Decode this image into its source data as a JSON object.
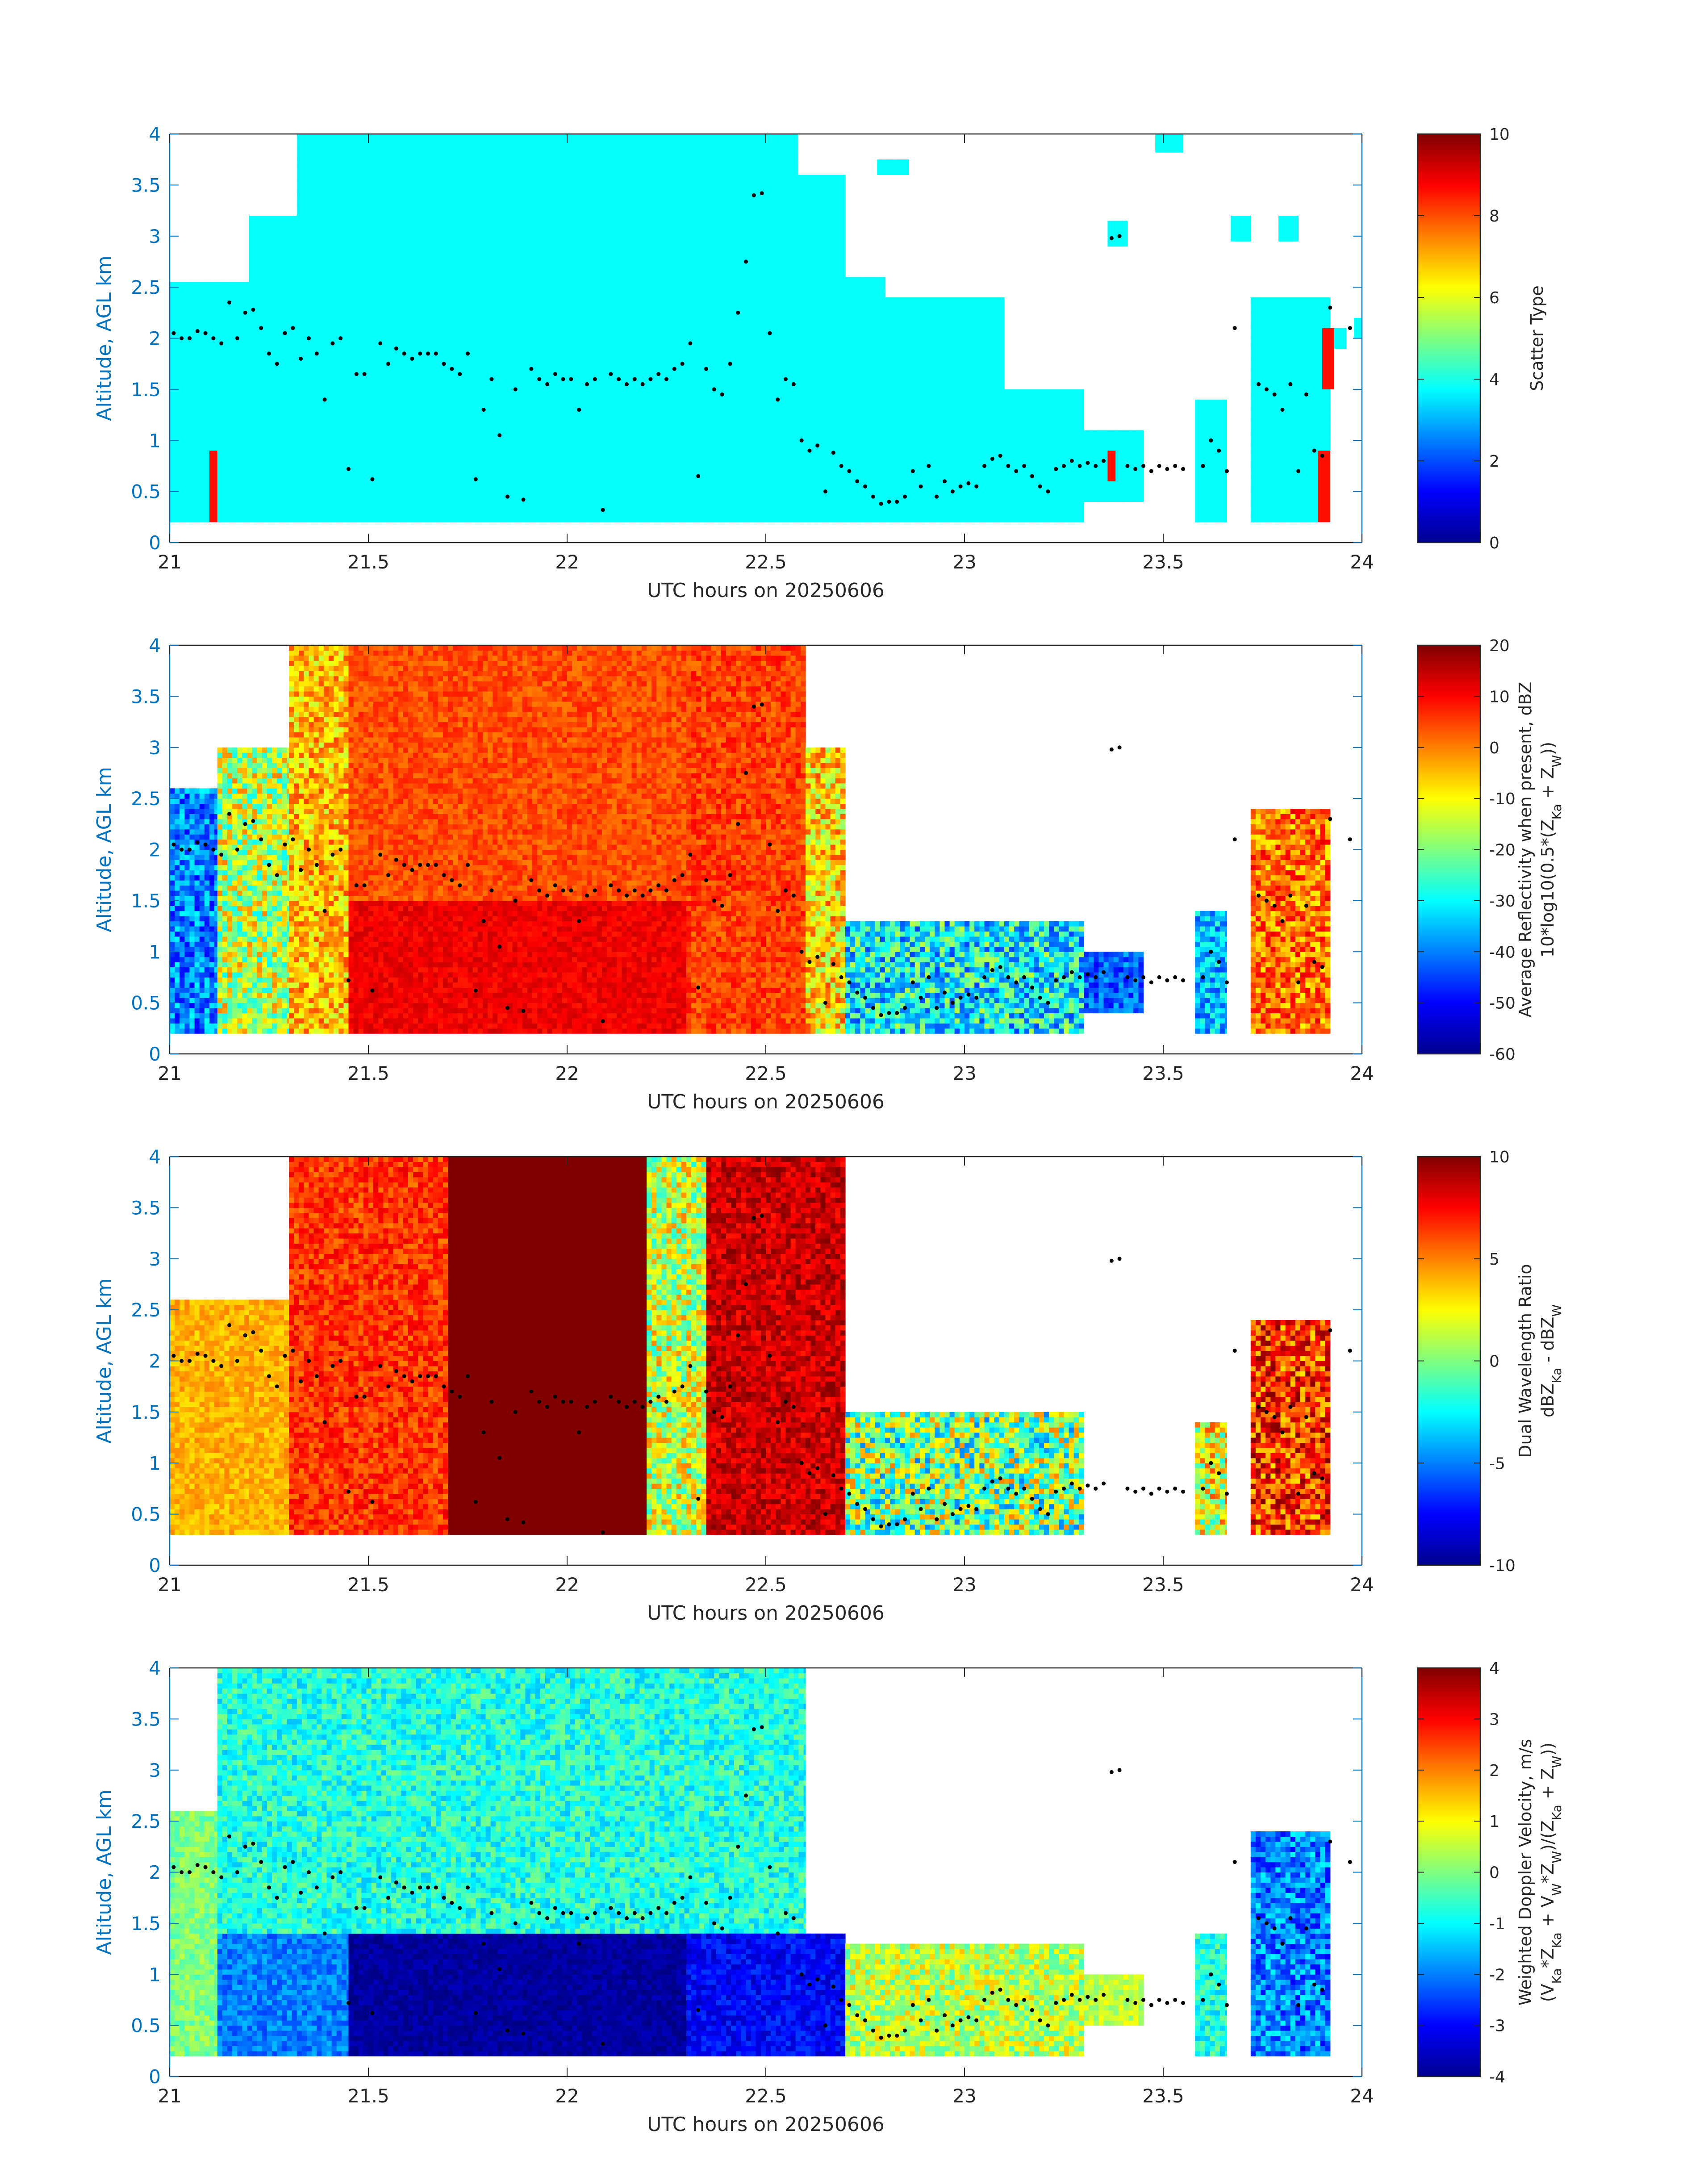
{
  "chart_data": [
    {
      "type": "heatmap",
      "xlabel": "UTC hours on 20250606",
      "ylabel": "Altitude, AGL km",
      "xlim": [
        21,
        24
      ],
      "ylim": [
        0,
        4
      ],
      "xticks": [
        "21",
        "21.5",
        "22",
        "22.5",
        "23",
        "23.5",
        "24"
      ],
      "yticks": [
        "0",
        "0.5",
        "1",
        "1.5",
        "2",
        "2.5",
        "3",
        "3.5",
        "4"
      ],
      "colorbar": {
        "label_lines": [
          "Scatter Type"
        ],
        "range": [
          0,
          10
        ],
        "ticks": [
          "0",
          "2",
          "4",
          "6",
          "8",
          "10"
        ],
        "colormap": "jet"
      },
      "dominant_value": 3.8,
      "regions": [
        {
          "t": [
            21.0,
            21.2
          ],
          "z": [
            0.2,
            2.55
          ]
        },
        {
          "t": [
            21.2,
            21.32
          ],
          "z": [
            0.2,
            3.2
          ]
        },
        {
          "t": [
            21.32,
            22.58
          ],
          "z": [
            0.2,
            4.0
          ]
        },
        {
          "t": [
            22.58,
            22.7
          ],
          "z": [
            0.2,
            3.6
          ]
        },
        {
          "t": [
            22.7,
            22.8
          ],
          "z": [
            0.2,
            2.6
          ]
        },
        {
          "t": [
            22.8,
            23.1
          ],
          "z": [
            0.2,
            2.4
          ]
        },
        {
          "t": [
            23.1,
            23.3
          ],
          "z": [
            0.2,
            1.5
          ]
        },
        {
          "t": [
            23.3,
            23.45
          ],
          "z": [
            0.4,
            1.1
          ]
        },
        {
          "t": [
            23.58,
            23.66
          ],
          "z": [
            0.2,
            1.4
          ]
        },
        {
          "t": [
            23.72,
            23.92
          ],
          "z": [
            0.2,
            2.4
          ]
        },
        {
          "t": [
            23.36,
            23.41
          ],
          "z": [
            2.9,
            3.15
          ]
        },
        {
          "t": [
            23.48,
            23.55
          ],
          "z": [
            3.82,
            4.0
          ]
        },
        {
          "t": [
            22.78,
            22.86
          ],
          "z": [
            3.6,
            3.75
          ]
        },
        {
          "t": [
            23.67,
            23.72
          ],
          "z": [
            2.95,
            3.2
          ]
        },
        {
          "t": [
            23.79,
            23.84
          ],
          "z": [
            2.95,
            3.2
          ]
        },
        {
          "t": [
            23.92,
            23.96
          ],
          "z": [
            1.9,
            2.1
          ]
        },
        {
          "t": [
            23.98,
            24.0
          ],
          "z": [
            2.0,
            2.2
          ]
        }
      ],
      "features": [
        {
          "t": [
            21.1,
            21.12
          ],
          "z": [
            0.2,
            0.9
          ],
          "value": 8.6
        },
        {
          "t": [
            23.36,
            23.38
          ],
          "z": [
            0.6,
            0.9
          ],
          "value": 8.6
        },
        {
          "t": [
            23.89,
            23.92
          ],
          "z": [
            0.2,
            0.9
          ],
          "value": 8.6
        },
        {
          "t": [
            23.9,
            23.93
          ],
          "z": [
            1.5,
            2.1
          ],
          "value": 8.6
        }
      ]
    },
    {
      "type": "heatmap",
      "xlabel": "UTC hours on 20250606",
      "ylabel": "Altitude, AGL km",
      "xlim": [
        21,
        24
      ],
      "ylim": [
        0,
        4
      ],
      "xticks": [
        "21",
        "21.5",
        "22",
        "22.5",
        "23",
        "23.5",
        "24"
      ],
      "yticks": [
        "0",
        "0.5",
        "1",
        "1.5",
        "2",
        "2.5",
        "3",
        "3.5",
        "4"
      ],
      "colorbar": {
        "label_lines": [
          "Average Reflectivity when present, dBZ",
          "10*log10(0.5*(Z",
          "Ka",
          " + Z",
          "W",
          "))"
        ],
        "range": [
          -60,
          20
        ],
        "ticks": [
          "-60",
          "-50",
          "-40",
          "-30",
          "-20",
          "-10",
          "0",
          "10",
          "20"
        ],
        "colormap": "jet"
      },
      "regions": [
        {
          "t": [
            21.0,
            21.12
          ],
          "z": [
            0.2,
            2.6
          ],
          "v": [
            -50,
            -30
          ]
        },
        {
          "t": [
            21.12,
            21.3
          ],
          "z": [
            0.2,
            3.0
          ],
          "v": [
            -30,
            0
          ]
        },
        {
          "t": [
            21.3,
            21.45
          ],
          "z": [
            0.2,
            4.0
          ],
          "v": [
            -15,
            5
          ]
        },
        {
          "t": [
            21.45,
            22.3
          ],
          "z": [
            0.2,
            1.5
          ],
          "v": [
            8,
            14
          ]
        },
        {
          "t": [
            21.45,
            22.3
          ],
          "z": [
            1.5,
            4.0
          ],
          "v": [
            0,
            8
          ]
        },
        {
          "t": [
            22.3,
            22.6
          ],
          "z": [
            0.2,
            4.0
          ],
          "v": [
            0,
            10
          ]
        },
        {
          "t": [
            22.6,
            22.7
          ],
          "z": [
            0.2,
            3.0
          ],
          "v": [
            -20,
            5
          ]
        },
        {
          "t": [
            22.7,
            23.3
          ],
          "z": [
            0.2,
            1.3
          ],
          "v": [
            -45,
            -15
          ]
        },
        {
          "t": [
            23.3,
            23.45
          ],
          "z": [
            0.4,
            1.0
          ],
          "v": [
            -50,
            -35
          ]
        },
        {
          "t": [
            23.58,
            23.66
          ],
          "z": [
            0.2,
            1.4
          ],
          "v": [
            -45,
            -25
          ]
        },
        {
          "t": [
            23.72,
            23.92
          ],
          "z": [
            0.2,
            2.4
          ],
          "v": [
            -10,
            12
          ]
        }
      ]
    },
    {
      "type": "heatmap",
      "xlabel": "UTC hours on 20250606",
      "ylabel": "Altitude, AGL km",
      "xlim": [
        21,
        24
      ],
      "ylim": [
        0,
        4
      ],
      "xticks": [
        "21",
        "21.5",
        "22",
        "22.5",
        "23",
        "23.5",
        "24"
      ],
      "yticks": [
        "0",
        "0.5",
        "1",
        "1.5",
        "2",
        "2.5",
        "3",
        "3.5",
        "4"
      ],
      "colorbar": {
        "label_lines": [
          "Dual Wavelength Ratio",
          "dBZ",
          "Ka",
          " - dBZ",
          "W"
        ],
        "range": [
          -10,
          10
        ],
        "ticks": [
          "-10",
          "-5",
          "0",
          "5",
          "10"
        ],
        "colormap": "jet"
      },
      "regions": [
        {
          "t": [
            21.0,
            21.3
          ],
          "z": [
            0.3,
            2.6
          ],
          "v": [
            3,
            5
          ]
        },
        {
          "t": [
            21.3,
            21.7
          ],
          "z": [
            0.3,
            4.0
          ],
          "v": [
            5,
            8
          ]
        },
        {
          "t": [
            21.7,
            22.2
          ],
          "z": [
            0.3,
            4.0
          ],
          "v": [
            10,
            10
          ]
        },
        {
          "t": [
            22.2,
            22.35
          ],
          "z": [
            0.3,
            4.0
          ],
          "v": [
            -2,
            5
          ]
        },
        {
          "t": [
            22.35,
            22.7
          ],
          "z": [
            0.3,
            4.0
          ],
          "v": [
            7,
            10
          ]
        },
        {
          "t": [
            22.7,
            23.3
          ],
          "z": [
            0.3,
            1.5
          ],
          "v": [
            -5,
            5
          ]
        },
        {
          "t": [
            23.58,
            23.66
          ],
          "z": [
            0.3,
            1.4
          ],
          "v": [
            -2,
            6
          ]
        },
        {
          "t": [
            23.72,
            23.92
          ],
          "z": [
            0.3,
            2.4
          ],
          "v": [
            3,
            10
          ]
        }
      ]
    },
    {
      "type": "heatmap",
      "xlabel": "UTC hours on 20250606",
      "ylabel": "Altitude, AGL km",
      "xlim": [
        21,
        24
      ],
      "ylim": [
        0,
        4
      ],
      "xticks": [
        "21",
        "21.5",
        "22",
        "22.5",
        "23",
        "23.5",
        "24"
      ],
      "yticks": [
        "0",
        "0.5",
        "1",
        "1.5",
        "2",
        "2.5",
        "3",
        "3.5",
        "4"
      ],
      "colorbar": {
        "label_lines": [
          "Weighted Doppler Velocity, m/s",
          "(V",
          "Ka",
          "*Z",
          "Ka",
          " + V",
          "W",
          "*Z",
          "W",
          ")/(Z",
          "Ka",
          " + Z",
          "W",
          "))"
        ],
        "range": [
          -4,
          4
        ],
        "ticks": [
          "-4",
          "-3",
          "-2",
          "-1",
          "0",
          "1",
          "2",
          "3",
          "4"
        ],
        "colormap": "jet"
      },
      "regions": [
        {
          "t": [
            21.0,
            21.12
          ],
          "z": [
            0.2,
            2.6
          ],
          "v": [
            -0.5,
            0.5
          ]
        },
        {
          "t": [
            21.12,
            21.45
          ],
          "z": [
            0.2,
            1.4
          ],
          "v": [
            -2.5,
            -1.5
          ]
        },
        {
          "t": [
            21.45,
            22.3
          ],
          "z": [
            0.2,
            1.4
          ],
          "v": [
            -4,
            -3.5
          ]
        },
        {
          "t": [
            21.12,
            22.6
          ],
          "z": [
            1.4,
            4.0
          ],
          "v": [
            -1.5,
            0
          ]
        },
        {
          "t": [
            22.3,
            22.7
          ],
          "z": [
            0.2,
            1.4
          ],
          "v": [
            -3.5,
            -2.5
          ]
        },
        {
          "t": [
            22.7,
            23.3
          ],
          "z": [
            0.2,
            1.3
          ],
          "v": [
            -0.5,
            1.5
          ]
        },
        {
          "t": [
            23.3,
            23.45
          ],
          "z": [
            0.5,
            1.0
          ],
          "v": [
            0,
            1
          ]
        },
        {
          "t": [
            23.58,
            23.66
          ],
          "z": [
            0.2,
            1.4
          ],
          "v": [
            -1.5,
            0
          ]
        },
        {
          "t": [
            23.72,
            23.92
          ],
          "z": [
            0.2,
            2.4
          ],
          "v": [
            -3,
            -1
          ]
        }
      ]
    }
  ],
  "cloud_base_points": [
    [
      21.01,
      2.05
    ],
    [
      21.03,
      2.0
    ],
    [
      21.05,
      2.0
    ],
    [
      21.07,
      2.07
    ],
    [
      21.09,
      2.05
    ],
    [
      21.11,
      2.0
    ],
    [
      21.13,
      1.95
    ],
    [
      21.15,
      2.35
    ],
    [
      21.17,
      2.0
    ],
    [
      21.19,
      2.25
    ],
    [
      21.21,
      2.28
    ],
    [
      21.23,
      2.1
    ],
    [
      21.25,
      1.85
    ],
    [
      21.27,
      1.75
    ],
    [
      21.29,
      2.05
    ],
    [
      21.31,
      2.1
    ],
    [
      21.33,
      1.8
    ],
    [
      21.35,
      2.0
    ],
    [
      21.37,
      1.85
    ],
    [
      21.39,
      1.4
    ],
    [
      21.41,
      1.95
    ],
    [
      21.43,
      2.0
    ],
    [
      21.45,
      0.72
    ],
    [
      21.47,
      1.65
    ],
    [
      21.49,
      1.65
    ],
    [
      21.51,
      0.62
    ],
    [
      21.53,
      1.95
    ],
    [
      21.55,
      1.75
    ],
    [
      21.57,
      1.9
    ],
    [
      21.59,
      1.85
    ],
    [
      21.61,
      1.8
    ],
    [
      21.63,
      1.85
    ],
    [
      21.65,
      1.85
    ],
    [
      21.67,
      1.85
    ],
    [
      21.69,
      1.75
    ],
    [
      21.71,
      1.7
    ],
    [
      21.73,
      1.65
    ],
    [
      21.75,
      1.85
    ],
    [
      21.77,
      0.62
    ],
    [
      21.79,
      1.3
    ],
    [
      21.81,
      1.6
    ],
    [
      21.83,
      1.05
    ],
    [
      21.85,
      0.45
    ],
    [
      21.87,
      1.5
    ],
    [
      21.89,
      0.42
    ],
    [
      21.91,
      1.7
    ],
    [
      21.93,
      1.6
    ],
    [
      21.95,
      1.55
    ],
    [
      21.97,
      1.65
    ],
    [
      21.99,
      1.6
    ],
    [
      22.01,
      1.6
    ],
    [
      22.03,
      1.3
    ],
    [
      22.05,
      1.55
    ],
    [
      22.07,
      1.6
    ],
    [
      22.09,
      0.32
    ],
    [
      22.11,
      1.65
    ],
    [
      22.13,
      1.6
    ],
    [
      22.15,
      1.55
    ],
    [
      22.17,
      1.6
    ],
    [
      22.19,
      1.55
    ],
    [
      22.21,
      1.6
    ],
    [
      22.23,
      1.65
    ],
    [
      22.25,
      1.6
    ],
    [
      22.27,
      1.7
    ],
    [
      22.29,
      1.75
    ],
    [
      22.31,
      1.95
    ],
    [
      22.33,
      0.65
    ],
    [
      22.35,
      1.7
    ],
    [
      22.37,
      1.5
    ],
    [
      22.39,
      1.45
    ],
    [
      22.41,
      1.75
    ],
    [
      22.43,
      2.25
    ],
    [
      22.45,
      2.75
    ],
    [
      22.47,
      3.4
    ],
    [
      22.49,
      3.42
    ],
    [
      22.51,
      2.05
    ],
    [
      22.53,
      1.4
    ],
    [
      22.55,
      1.6
    ],
    [
      22.57,
      1.55
    ],
    [
      22.59,
      1.0
    ],
    [
      22.61,
      0.9
    ],
    [
      22.63,
      0.95
    ],
    [
      22.65,
      0.5
    ],
    [
      22.67,
      0.88
    ],
    [
      22.69,
      0.75
    ],
    [
      22.71,
      0.7
    ],
    [
      22.73,
      0.6
    ],
    [
      22.75,
      0.55
    ],
    [
      22.77,
      0.45
    ],
    [
      22.79,
      0.38
    ],
    [
      22.81,
      0.4
    ],
    [
      22.83,
      0.4
    ],
    [
      22.85,
      0.45
    ],
    [
      22.87,
      0.7
    ],
    [
      22.89,
      0.55
    ],
    [
      22.91,
      0.75
    ],
    [
      22.93,
      0.45
    ],
    [
      22.95,
      0.6
    ],
    [
      22.97,
      0.5
    ],
    [
      22.99,
      0.55
    ],
    [
      23.01,
      0.58
    ],
    [
      23.03,
      0.55
    ],
    [
      23.05,
      0.75
    ],
    [
      23.07,
      0.82
    ],
    [
      23.09,
      0.85
    ],
    [
      23.11,
      0.75
    ],
    [
      23.13,
      0.7
    ],
    [
      23.15,
      0.75
    ],
    [
      23.17,
      0.65
    ],
    [
      23.19,
      0.55
    ],
    [
      23.21,
      0.5
    ],
    [
      23.23,
      0.72
    ],
    [
      23.25,
      0.75
    ],
    [
      23.27,
      0.8
    ],
    [
      23.29,
      0.75
    ],
    [
      23.31,
      0.78
    ],
    [
      23.33,
      0.75
    ],
    [
      23.35,
      0.8
    ],
    [
      23.37,
      2.98
    ],
    [
      23.39,
      3.0
    ],
    [
      23.41,
      0.75
    ],
    [
      23.43,
      0.72
    ],
    [
      23.45,
      0.75
    ],
    [
      23.47,
      0.7
    ],
    [
      23.49,
      0.75
    ],
    [
      23.51,
      0.72
    ],
    [
      23.53,
      0.75
    ],
    [
      23.55,
      0.72
    ],
    [
      23.6,
      0.75
    ],
    [
      23.62,
      1.0
    ],
    [
      23.64,
      0.9
    ],
    [
      23.66,
      0.7
    ],
    [
      23.68,
      2.1
    ],
    [
      23.74,
      1.55
    ],
    [
      23.76,
      1.5
    ],
    [
      23.78,
      1.45
    ],
    [
      23.8,
      1.3
    ],
    [
      23.82,
      1.55
    ],
    [
      23.84,
      0.7
    ],
    [
      23.86,
      1.45
    ],
    [
      23.88,
      0.9
    ],
    [
      23.9,
      0.85
    ],
    [
      23.92,
      2.3
    ],
    [
      23.97,
      2.1
    ]
  ]
}
